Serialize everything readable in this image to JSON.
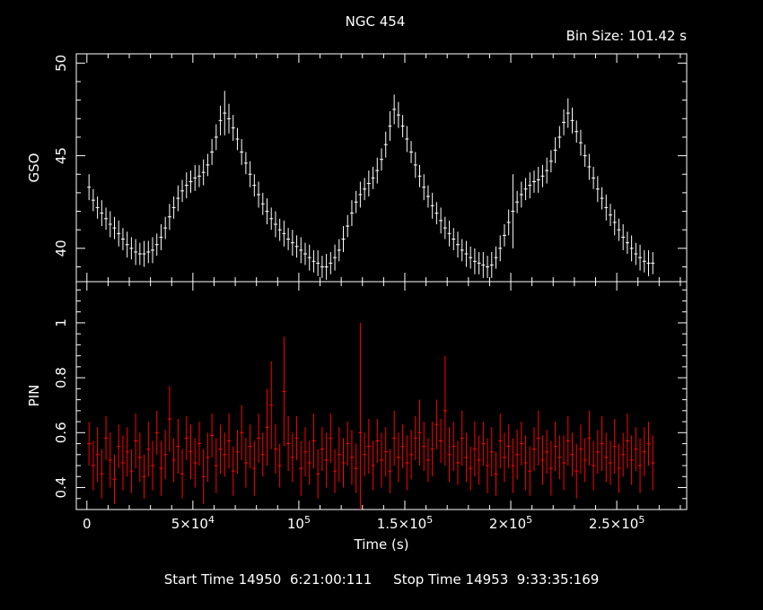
{
  "chart_data": [
    {
      "type": "scatter",
      "panel": "top",
      "ylabel": "GSO",
      "xlim": [
        -5000,
        283000
      ],
      "ylim": [
        38.2,
        50.5
      ],
      "yticks_major": [
        "40",
        "45",
        "50"
      ],
      "series": [
        {
          "color": "#ffffff",
          "x": [
            1000,
            3000,
            5000,
            7000,
            9000,
            11000,
            13000,
            15000,
            17000,
            19000,
            21000,
            23000,
            25000,
            27000,
            29000,
            31000,
            33000,
            35000,
            37000,
            39000,
            41000,
            43000,
            45000,
            47000,
            49000,
            51000,
            53000,
            55000,
            57000,
            59000,
            61000,
            63000,
            65000,
            67000,
            69000,
            71000,
            73000,
            75000,
            77000,
            79000,
            81000,
            83000,
            85000,
            87000,
            89000,
            91000,
            93000,
            95000,
            97000,
            99000,
            101000,
            103000,
            105000,
            107000,
            109000,
            111000,
            113000,
            115000,
            117000,
            119000,
            121000,
            123000,
            125000,
            127000,
            129000,
            131000,
            133000,
            135000,
            137000,
            139000,
            141000,
            143000,
            145000,
            147000,
            149000,
            151000,
            153000,
            155000,
            157000,
            159000,
            161000,
            163000,
            165000,
            167000,
            169000,
            171000,
            173000,
            175000,
            177000,
            179000,
            181000,
            183000,
            185000,
            187000,
            189000,
            191000,
            193000,
            195000,
            197000,
            199000,
            201000,
            203000,
            205000,
            207000,
            209000,
            211000,
            213000,
            215000,
            217000,
            219000,
            221000,
            223000,
            225000,
            227000,
            229000,
            231000,
            233000,
            235000,
            237000,
            239000,
            241000,
            243000,
            245000,
            247000,
            249000,
            251000,
            253000,
            255000,
            257000,
            259000,
            261000,
            263000,
            265000,
            267000
          ],
          "y": [
            43.3,
            42.6,
            42.2,
            41.9,
            41.6,
            41.3,
            41.1,
            40.8,
            40.5,
            40.2,
            40.0,
            39.8,
            39.7,
            39.7,
            39.8,
            39.9,
            40.2,
            40.6,
            41.1,
            41.7,
            42.2,
            42.7,
            43.1,
            43.4,
            43.6,
            43.8,
            43.9,
            44.1,
            44.5,
            45.2,
            46.0,
            46.9,
            47.3,
            47.0,
            46.5,
            45.9,
            45.2,
            44.6,
            44.0,
            43.4,
            42.9,
            42.4,
            42.0,
            41.6,
            41.3,
            41.0,
            40.8,
            40.5,
            40.3,
            40.1,
            39.9,
            39.7,
            39.5,
            39.3,
            39.2,
            39.0,
            39.0,
            39.2,
            39.5,
            39.9,
            40.5,
            41.2,
            41.9,
            42.5,
            42.9,
            43.2,
            43.5,
            43.8,
            44.2,
            44.8,
            45.6,
            46.6,
            47.5,
            47.2,
            46.6,
            45.9,
            45.2,
            44.5,
            43.9,
            43.3,
            42.8,
            42.3,
            41.9,
            41.5,
            41.1,
            40.8,
            40.5,
            40.2,
            39.9,
            39.7,
            39.5,
            39.3,
            39.2,
            39.1,
            39.0,
            39.1,
            39.5,
            40.0,
            40.7,
            41.4,
            42.0,
            42.5,
            42.9,
            43.2,
            43.4,
            43.6,
            43.7,
            43.9,
            44.2,
            44.7,
            45.3,
            46.0,
            46.8,
            47.3,
            46.9,
            46.3,
            45.7,
            45.0,
            44.4,
            43.8,
            43.2,
            42.7,
            42.2,
            41.8,
            41.4,
            41.0,
            40.6,
            40.3,
            40.0,
            39.7,
            39.5,
            39.3,
            39.2,
            39.2
          ],
          "errors": [
            0.7,
            0.6,
            0.6,
            0.7,
            0.6,
            0.7,
            0.6,
            0.7,
            0.6,
            0.7,
            0.6,
            0.7,
            0.6,
            0.7,
            0.6,
            0.7,
            0.6,
            0.7,
            0.6,
            0.7,
            0.6,
            0.7,
            0.6,
            0.7,
            0.6,
            0.7,
            0.6,
            0.7,
            0.6,
            0.7,
            0.7,
            0.8,
            1.2,
            0.8,
            0.7,
            0.6,
            0.7,
            0.6,
            0.7,
            0.6,
            0.7,
            0.6,
            0.7,
            0.6,
            0.7,
            0.6,
            0.7,
            0.6,
            0.7,
            0.6,
            0.7,
            0.6,
            0.7,
            0.6,
            0.7,
            0.6,
            0.7,
            0.6,
            0.7,
            0.6,
            0.7,
            0.6,
            0.7,
            0.6,
            0.7,
            0.6,
            0.7,
            0.6,
            0.7,
            0.6,
            0.7,
            0.8,
            0.8,
            0.7,
            0.6,
            0.7,
            0.6,
            0.7,
            0.6,
            0.7,
            0.6,
            0.7,
            0.6,
            0.7,
            0.6,
            0.7,
            0.6,
            0.7,
            0.6,
            0.7,
            0.6,
            0.7,
            0.6,
            0.7,
            0.6,
            0.7,
            0.6,
            0.7,
            0.6,
            0.7,
            2.0,
            0.6,
            0.7,
            0.6,
            0.7,
            0.6,
            0.7,
            0.6,
            0.7,
            0.6,
            0.7,
            0.6,
            0.7,
            0.8,
            0.7,
            0.6,
            0.7,
            0.6,
            0.7,
            0.6,
            0.7,
            0.6,
            0.7,
            0.6,
            0.7,
            0.6,
            0.7,
            0.6,
            0.7,
            0.6,
            0.7,
            0.6,
            0.7,
            0.6
          ]
        }
      ]
    },
    {
      "type": "scatter",
      "panel": "bottom",
      "ylabel": "PIN",
      "xlabel": "Time (s)",
      "xlim": [
        -5000,
        283000
      ],
      "ylim": [
        0.32,
        1.15
      ],
      "yticks_major": [
        "0.4",
        "0.6",
        "0.8",
        "1"
      ],
      "xticks": [
        {
          "value": 0,
          "base": "0",
          "exp": ""
        },
        {
          "value": 50000,
          "base": "5×10",
          "exp": "4"
        },
        {
          "value": 100000,
          "base": "10",
          "exp": "5"
        },
        {
          "value": 150000,
          "base": "1.5×10",
          "exp": "5"
        },
        {
          "value": 200000,
          "base": "2×10",
          "exp": "5"
        },
        {
          "value": 250000,
          "base": "2.5×10",
          "exp": "5"
        }
      ],
      "series": [
        {
          "color": "#ff0000",
          "x": [
            1000,
            3000,
            5000,
            7000,
            9000,
            11000,
            13000,
            15000,
            17000,
            19000,
            21000,
            23000,
            25000,
            27000,
            29000,
            31000,
            33000,
            35000,
            37000,
            39000,
            41000,
            43000,
            45000,
            47000,
            49000,
            51000,
            53000,
            55000,
            57000,
            59000,
            61000,
            63000,
            65000,
            67000,
            69000,
            71000,
            73000,
            75000,
            77000,
            79000,
            81000,
            83000,
            85000,
            87000,
            89000,
            91000,
            93000,
            95000,
            97000,
            99000,
            101000,
            103000,
            105000,
            107000,
            109000,
            111000,
            113000,
            115000,
            117000,
            119000,
            121000,
            123000,
            125000,
            127000,
            129000,
            131000,
            133000,
            135000,
            137000,
            139000,
            141000,
            143000,
            145000,
            147000,
            149000,
            151000,
            153000,
            155000,
            157000,
            159000,
            161000,
            163000,
            165000,
            167000,
            169000,
            171000,
            173000,
            175000,
            177000,
            179000,
            181000,
            183000,
            185000,
            187000,
            189000,
            191000,
            193000,
            195000,
            197000,
            199000,
            201000,
            203000,
            205000,
            207000,
            209000,
            211000,
            213000,
            215000,
            217000,
            219000,
            221000,
            223000,
            225000,
            227000,
            229000,
            231000,
            233000,
            235000,
            237000,
            239000,
            241000,
            243000,
            245000,
            247000,
            249000,
            251000,
            253000,
            255000,
            257000,
            259000,
            261000,
            263000,
            265000,
            267000
          ],
          "y": [
            0.56,
            0.48,
            0.52,
            0.45,
            0.58,
            0.5,
            0.43,
            0.55,
            0.49,
            0.53,
            0.46,
            0.57,
            0.51,
            0.44,
            0.54,
            0.48,
            0.6,
            0.47,
            0.52,
            0.65,
            0.5,
            0.55,
            0.45,
            0.58,
            0.53,
            0.49,
            0.56,
            0.44,
            0.51,
            0.59,
            0.48,
            0.54,
            0.52,
            0.57,
            0.46,
            0.53,
            0.6,
            0.49,
            0.55,
            0.47,
            0.58,
            0.52,
            0.62,
            0.7,
            0.54,
            0.48,
            0.75,
            0.56,
            0.51,
            0.58,
            0.47,
            0.53,
            0.49,
            0.57,
            0.45,
            0.54,
            0.5,
            0.58,
            0.46,
            0.52,
            0.49,
            0.56,
            0.51,
            0.47,
            0.6,
            0.52,
            0.55,
            0.48,
            0.57,
            0.5,
            0.53,
            0.46,
            0.58,
            0.51,
            0.55,
            0.49,
            0.52,
            0.58,
            0.6,
            0.55,
            0.5,
            0.54,
            0.63,
            0.57,
            0.68,
            0.52,
            0.55,
            0.49,
            0.58,
            0.51,
            0.47,
            0.54,
            0.5,
            0.56,
            0.48,
            0.53,
            0.45,
            0.57,
            0.51,
            0.55,
            0.48,
            0.52,
            0.56,
            0.49,
            0.46,
            0.54,
            0.58,
            0.5,
            0.53,
            0.47,
            0.55,
            0.51,
            0.49,
            0.57,
            0.52,
            0.46,
            0.54,
            0.5,
            0.58,
            0.48,
            0.53,
            0.56,
            0.51,
            0.49,
            0.55,
            0.47,
            0.52,
            0.57,
            0.5,
            0.54,
            0.48,
            0.53,
            0.56,
            0.49
          ],
          "errors": [
            0.08,
            0.09,
            0.1,
            0.09,
            0.08,
            0.1,
            0.09,
            0.08,
            0.1,
            0.09,
            0.08,
            0.1,
            0.09,
            0.08,
            0.1,
            0.09,
            0.08,
            0.1,
            0.09,
            0.12,
            0.08,
            0.1,
            0.09,
            0.08,
            0.1,
            0.09,
            0.08,
            0.1,
            0.09,
            0.08,
            0.1,
            0.09,
            0.08,
            0.1,
            0.09,
            0.08,
            0.1,
            0.09,
            0.08,
            0.1,
            0.09,
            0.08,
            0.14,
            0.16,
            0.09,
            0.08,
            0.2,
            0.1,
            0.09,
            0.08,
            0.1,
            0.09,
            0.08,
            0.1,
            0.09,
            0.08,
            0.1,
            0.09,
            0.08,
            0.1,
            0.09,
            0.08,
            0.1,
            0.09,
            0.4,
            0.08,
            0.1,
            0.09,
            0.08,
            0.1,
            0.09,
            0.08,
            0.1,
            0.09,
            0.08,
            0.1,
            0.09,
            0.08,
            0.12,
            0.09,
            0.08,
            0.1,
            0.09,
            0.08,
            0.2,
            0.1,
            0.09,
            0.08,
            0.1,
            0.09,
            0.08,
            0.1,
            0.09,
            0.08,
            0.1,
            0.09,
            0.08,
            0.1,
            0.09,
            0.08,
            0.1,
            0.09,
            0.08,
            0.1,
            0.09,
            0.08,
            0.1,
            0.09,
            0.08,
            0.1,
            0.09,
            0.08,
            0.1,
            0.09,
            0.08,
            0.1,
            0.09,
            0.08,
            0.1,
            0.09,
            0.08,
            0.1,
            0.09,
            0.08,
            0.1,
            0.09,
            0.08,
            0.1,
            0.09,
            0.08,
            0.1,
            0.09,
            0.08,
            0.1
          ]
        }
      ]
    }
  ],
  "title": "NGC 454",
  "bin_size": "Bin Size: 101.42 s",
  "footer": "Start Time 14950  6:21:00:111     Stop Time 14953  9:33:35:169"
}
